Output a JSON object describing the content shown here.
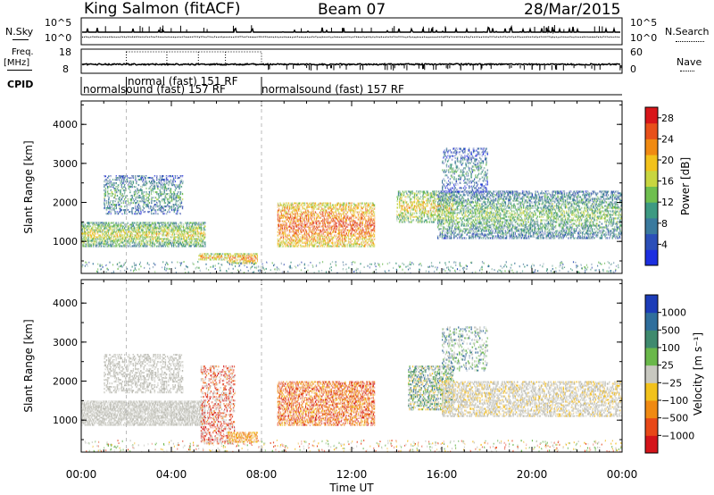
{
  "header": {
    "station": "King Salmon (fitACF)",
    "beam": "Beam 07",
    "date": "28/Mar/2015"
  },
  "left_labels": {
    "nsky": "N.Sky",
    "freq": "Freq.",
    "freq_unit": "[MHz]",
    "cpid": "CPID"
  },
  "right_labels": {
    "nsearch": "N.Search",
    "nave": "Nave"
  },
  "noise_axis": {
    "left_ticks": [
      "10^5",
      "10^0"
    ],
    "right_ticks": [
      "10^5",
      "10^0"
    ]
  },
  "freq_axis": {
    "left_ticks": [
      "18",
      "8"
    ],
    "right_ticks": [
      "60",
      "0"
    ]
  },
  "cpid_segments": [
    {
      "label": "normalsound (fast) 157 RF",
      "start_hour": 0,
      "end_hour": 8
    },
    {
      "label": "normal (fast) 151 RF",
      "start_hour": 2,
      "end_hour": 8
    },
    {
      "label": "normalsound (fast) 157 RF",
      "start_hour": 8,
      "end_hour": 24
    }
  ],
  "chart_data": [
    {
      "type": "heatmap",
      "panel": "power",
      "x": [
        0,
        4,
        8,
        12,
        16,
        20,
        24
      ],
      "x_tick_labels": [
        "00:00",
        "04:00",
        "08:00",
        "12:00",
        "16:00",
        "20:00",
        "00:00"
      ],
      "xlabel": "Time UT",
      "ylabel": "Slant Range [km]",
      "y_ticks": [
        1000,
        2000,
        3000,
        4000
      ],
      "ylim": [
        180,
        4600
      ],
      "xlim": [
        0,
        24
      ],
      "colorbar": {
        "label": "Power [dB]",
        "ticks": [
          4,
          8,
          12,
          16,
          20,
          24,
          28
        ],
        "range": [
          0,
          30
        ]
      },
      "color_scale": [
        "#1c2fe0",
        "#2b4fb8",
        "#3a7a9e",
        "#3d9a82",
        "#6fbf4f",
        "#c8d640",
        "#f2c21c",
        "#f08a12",
        "#e8501a",
        "#d8161a"
      ],
      "features": [
        {
          "from_hour": 0,
          "to_hour": 5.5,
          "range_km": [
            900,
            1500
          ],
          "level_db": 20
        },
        {
          "from_hour": 1,
          "to_hour": 4.5,
          "range_km": [
            1700,
            2700
          ],
          "level_db": 12
        },
        {
          "from_hour": 5.2,
          "to_hour": 6.5,
          "range_km": [
            550,
            700
          ],
          "level_db": 20
        },
        {
          "from_hour": 6.5,
          "to_hour": 7.8,
          "range_km": [
            450,
            700
          ],
          "level_db": 22
        },
        {
          "from_hour": 8.7,
          "to_hour": 13,
          "range_km": [
            900,
            2000
          ],
          "level_db": 22
        },
        {
          "from_hour": 14,
          "to_hour": 16.5,
          "range_km": [
            1500,
            2300
          ],
          "level_db": 18
        },
        {
          "from_hour": 15.8,
          "to_hour": 24,
          "range_km": [
            1100,
            2300
          ],
          "level_db": 12
        }
      ]
    },
    {
      "type": "heatmap",
      "panel": "velocity",
      "x": [
        0,
        4,
        8,
        12,
        16,
        20,
        24
      ],
      "x_tick_labels": [
        "00:00",
        "04:00",
        "08:00",
        "12:00",
        "16:00",
        "20:00",
        "00:00"
      ],
      "xlabel": "Time UT",
      "ylabel": "Slant Range [km]",
      "y_ticks": [
        1000,
        2000,
        3000,
        4000
      ],
      "ylim": [
        180,
        4600
      ],
      "xlim": [
        0,
        24
      ],
      "colorbar": {
        "label": "Velocity [m s⁻¹]",
        "ticks": [
          "1000",
          "500",
          "100",
          "25",
          "−25",
          "−100",
          "−500",
          "−1000"
        ]
      },
      "color_scale": [
        "#1c3cb8",
        "#2f6e9c",
        "#3f8a6e",
        "#6ab84a",
        "#c8c8c0",
        "#f2c21c",
        "#f08a12",
        "#e84818",
        "#d4141a"
      ],
      "features": [
        {
          "from_hour": 0,
          "to_hour": 5.5,
          "range_km": [
            900,
            2700
          ],
          "velocity_class": "ground scatter"
        },
        {
          "from_hour": 5.3,
          "to_hour": 6.8,
          "range_km": [
            400,
            2400
          ],
          "velocity_class": "-500"
        },
        {
          "from_hour": 8.7,
          "to_hour": 13,
          "range_km": [
            900,
            2000
          ],
          "velocity_class": "-100"
        },
        {
          "from_hour": 14.5,
          "to_hour": 16.5,
          "range_km": [
            1300,
            2400
          ],
          "velocity_class": "100"
        },
        {
          "from_hour": 16,
          "to_hour": 24,
          "range_km": [
            1100,
            2000
          ],
          "velocity_class": "ground scatter"
        }
      ]
    }
  ]
}
